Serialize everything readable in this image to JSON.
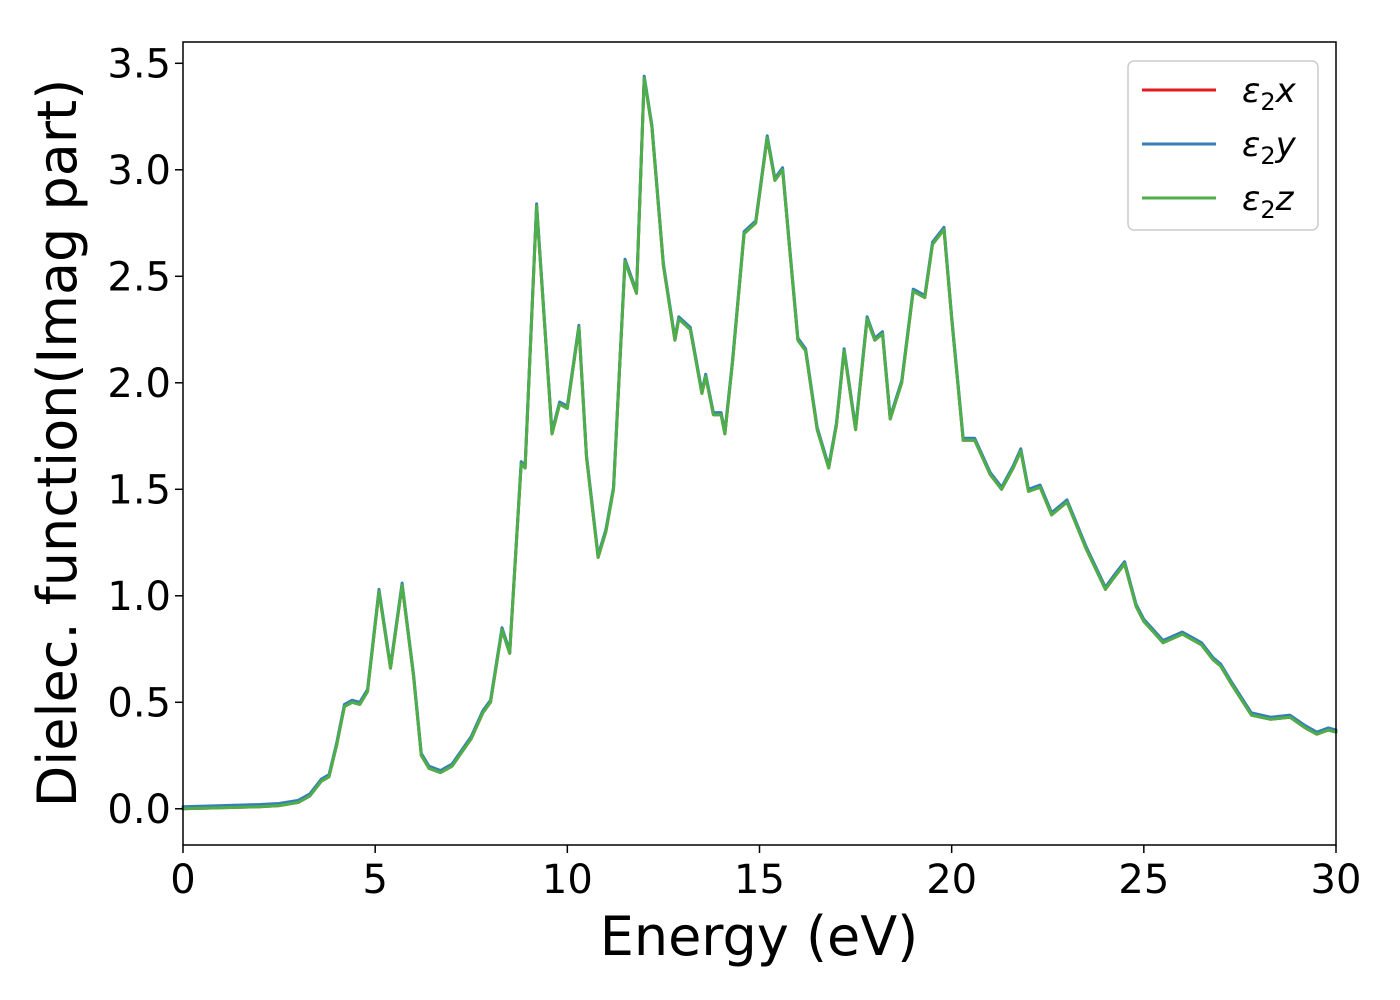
{
  "chart_data": {
    "type": "line",
    "xlabel": "Energy (eV)",
    "ylabel": "Dielec. function(Imag part)",
    "xlim": [
      0,
      30
    ],
    "ylim": [
      -0.17,
      3.6
    ],
    "x_ticks": [
      "0",
      "5",
      "10",
      "15",
      "20",
      "25",
      "30"
    ],
    "y_ticks": [
      "0.0",
      "0.5",
      "1.0",
      "1.5",
      "2.0",
      "2.5",
      "3.0",
      "3.5"
    ],
    "grid": false,
    "legend_position": "top-right",
    "series": [
      {
        "name": "ε2x",
        "label_main": "ε",
        "label_sub": "2",
        "label_axis": "x",
        "color": "#e41a1c",
        "y_offset": 0.0
      },
      {
        "name": "ε2y",
        "label_main": "ε",
        "label_sub": "2",
        "label_axis": "y",
        "color": "#377eb8",
        "y_offset": 0.01
      },
      {
        "name": "ε2z",
        "label_main": "ε",
        "label_sub": "2",
        "label_axis": "z",
        "color": "#4daf4a",
        "y_offset": 0.0
      }
    ],
    "x": [
      0,
      1,
      2,
      2.5,
      3.0,
      3.3,
      3.6,
      3.8,
      4.0,
      4.2,
      4.4,
      4.6,
      4.8,
      5.1,
      5.4,
      5.7,
      6.0,
      6.2,
      6.4,
      6.7,
      7.0,
      7.5,
      7.8,
      8.0,
      8.3,
      8.5,
      8.8,
      8.9,
      9.2,
      9.6,
      9.8,
      10.0,
      10.3,
      10.5,
      10.8,
      11.0,
      11.2,
      11.5,
      11.8,
      12.0,
      12.2,
      12.5,
      12.8,
      12.9,
      13.2,
      13.5,
      13.6,
      13.8,
      14.0,
      14.1,
      14.3,
      14.6,
      14.9,
      15.2,
      15.4,
      15.6,
      15.8,
      16.0,
      16.2,
      16.5,
      16.8,
      17.0,
      17.2,
      17.5,
      17.8,
      18.0,
      18.2,
      18.4,
      18.7,
      19.0,
      19.3,
      19.5,
      19.8,
      20.0,
      20.3,
      20.6,
      21.0,
      21.3,
      21.6,
      21.8,
      22.0,
      22.3,
      22.6,
      23.0,
      23.5,
      24.0,
      24.2,
      24.5,
      24.8,
      25.0,
      25.3,
      25.5,
      26.0,
      26.5,
      26.8,
      27.0,
      27.3,
      27.8,
      28.3,
      28.8,
      29.2,
      29.5,
      29.8,
      30.0
    ],
    "y": [
      0.0,
      0.005,
      0.01,
      0.015,
      0.03,
      0.06,
      0.13,
      0.15,
      0.3,
      0.48,
      0.5,
      0.49,
      0.55,
      1.02,
      0.66,
      1.05,
      0.62,
      0.25,
      0.19,
      0.17,
      0.2,
      0.33,
      0.45,
      0.5,
      0.84,
      0.73,
      1.62,
      1.6,
      2.83,
      1.76,
      1.9,
      1.88,
      2.26,
      1.65,
      1.18,
      1.3,
      1.5,
      2.57,
      2.42,
      3.43,
      3.2,
      2.55,
      2.2,
      2.3,
      2.25,
      1.95,
      2.03,
      1.85,
      1.85,
      1.76,
      2.1,
      2.7,
      2.75,
      3.15,
      2.95,
      3.0,
      2.6,
      2.2,
      2.15,
      1.78,
      1.6,
      1.8,
      2.15,
      1.78,
      2.3,
      2.2,
      2.23,
      1.83,
      2.0,
      2.43,
      2.4,
      2.65,
      2.72,
      2.3,
      1.73,
      1.73,
      1.57,
      1.5,
      1.6,
      1.68,
      1.49,
      1.51,
      1.38,
      1.44,
      1.22,
      1.03,
      1.08,
      1.15,
      0.95,
      0.88,
      0.82,
      0.78,
      0.82,
      0.77,
      0.7,
      0.67,
      0.58,
      0.44,
      0.42,
      0.43,
      0.38,
      0.35,
      0.37,
      0.36
    ]
  }
}
